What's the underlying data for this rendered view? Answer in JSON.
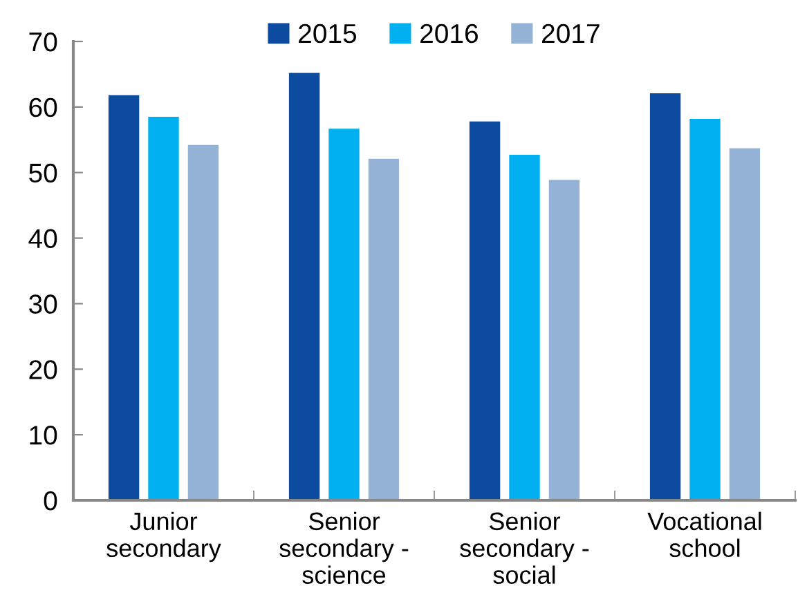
{
  "chart_data": {
    "type": "bar",
    "categories": [
      "Junior\nsecondary",
      "Senior\nsecondary -\nscience",
      "Senior\nsecondary -\nsocial",
      "Vocational\nschool"
    ],
    "series": [
      {
        "name": "2015",
        "color": "#0d4ba0",
        "values": [
          61.8,
          65.2,
          57.8,
          62.1
        ]
      },
      {
        "name": "2016",
        "color": "#00b0f0",
        "values": [
          58.5,
          56.7,
          52.7,
          58.2
        ]
      },
      {
        "name": "2017",
        "color": "#95b3d7",
        "values": [
          54.2,
          52.1,
          48.9,
          53.7
        ]
      }
    ],
    "ylim": [
      0,
      70
    ],
    "yticks": [
      0,
      10,
      20,
      30,
      40,
      50,
      60,
      70
    ],
    "grid": false,
    "legend": "top"
  }
}
